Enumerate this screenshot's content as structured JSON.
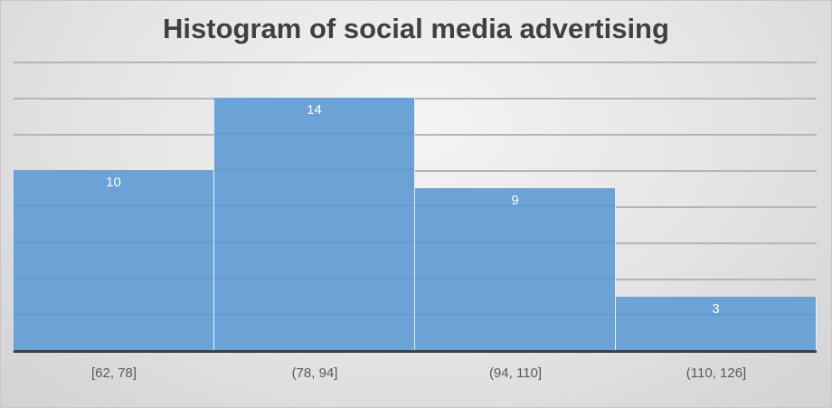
{
  "chart_data": {
    "type": "bar",
    "title": "Histogram of social media advertising",
    "categories": [
      "[62, 78]",
      "(78, 94]",
      "(94, 110]",
      "(110, 126]"
    ],
    "values": [
      10,
      14,
      9,
      3
    ],
    "xlabel": "",
    "ylabel": "",
    "ylim": [
      0,
      16
    ],
    "grid": true,
    "grid_step": 2,
    "legend": "none",
    "data_labels": true,
    "bar_color": "#6ca3d7",
    "axis_color": "#404040"
  }
}
